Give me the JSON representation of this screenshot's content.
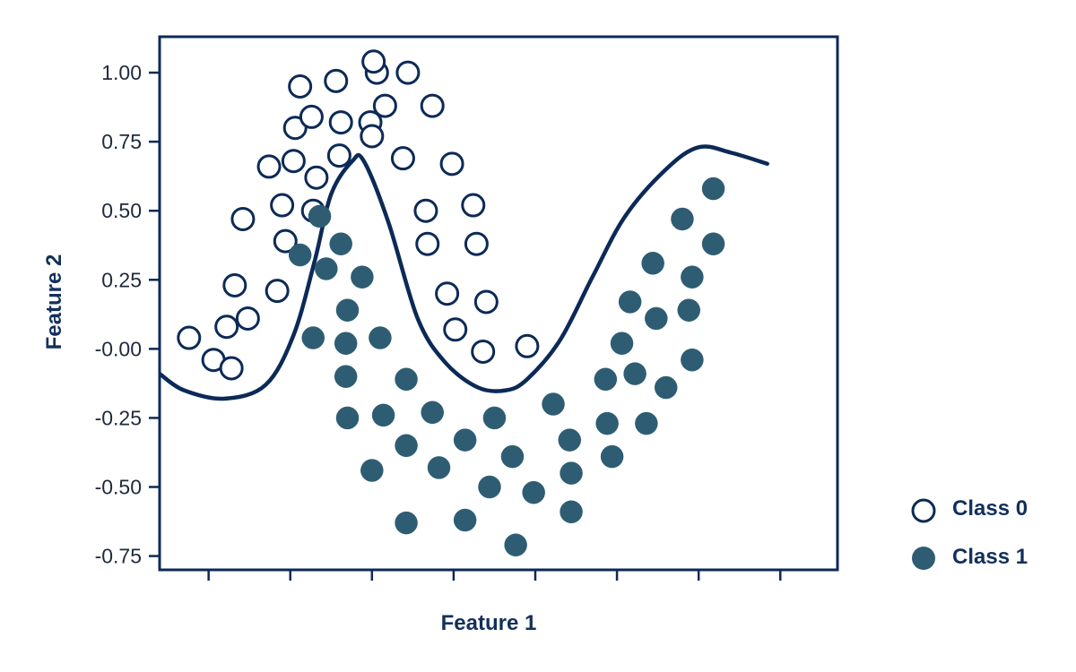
{
  "chart_data": {
    "type": "scatter",
    "title": "",
    "xlabel": "Feature 1",
    "ylabel": "Feature 2",
    "xlim": [
      -1.3,
      2.85
    ],
    "ylim": [
      -0.8,
      1.13
    ],
    "x_ticks": [
      -1,
      -0.5,
      0,
      0.5,
      1,
      1.5,
      2,
      2.5
    ],
    "y_ticks": [
      1.0,
      0.75,
      0.5,
      0.25,
      0.0,
      -0.25,
      -0.5,
      -0.75
    ],
    "y_tick_labels": [
      "1.00",
      "0.75",
      "0.50",
      "0.25",
      "-0.00",
      "-0.25",
      "-0.50",
      "-0.75"
    ],
    "grid": false,
    "legend_position": "right",
    "colors": {
      "axis": "#0c2a57",
      "class0_stroke": "#0c2a57",
      "class0_fill": "#ffffff",
      "class1_fill": "#2e5d73",
      "boundary": "#0c2a57"
    },
    "series": [
      {
        "name": "Class 0",
        "marker": "hollow-circle",
        "points": [
          [
            -1.12,
            0.04
          ],
          [
            -0.97,
            -0.04
          ],
          [
            -0.89,
            0.08
          ],
          [
            -0.86,
            -0.07
          ],
          [
            -0.84,
            0.23
          ],
          [
            -0.79,
            0.47
          ],
          [
            -0.76,
            0.11
          ],
          [
            -0.63,
            0.66
          ],
          [
            -0.58,
            0.21
          ],
          [
            -0.55,
            0.52
          ],
          [
            -0.53,
            0.39
          ],
          [
            -0.48,
            0.68
          ],
          [
            -0.47,
            0.8
          ],
          [
            -0.44,
            0.95
          ],
          [
            -0.37,
            0.84
          ],
          [
            -0.36,
            0.5
          ],
          [
            -0.34,
            0.62
          ],
          [
            -0.22,
            0.97
          ],
          [
            -0.2,
            0.7
          ],
          [
            -0.19,
            0.82
          ],
          [
            -0.01,
            0.82
          ],
          [
            0.03,
            1.0
          ],
          [
            0.0,
            0.77
          ],
          [
            0.01,
            1.04
          ],
          [
            0.08,
            0.88
          ],
          [
            0.19,
            0.69
          ],
          [
            0.22,
            1.0
          ],
          [
            0.33,
            0.5
          ],
          [
            0.34,
            0.38
          ],
          [
            0.37,
            0.88
          ],
          [
            0.46,
            0.2
          ],
          [
            0.49,
            0.67
          ],
          [
            0.51,
            0.07
          ],
          [
            0.62,
            0.52
          ],
          [
            0.64,
            0.38
          ],
          [
            0.7,
            0.17
          ],
          [
            0.68,
            -0.01
          ],
          [
            0.95,
            0.01
          ]
        ]
      },
      {
        "name": "Class 1",
        "marker": "filled-circle",
        "points": [
          [
            -0.44,
            0.34
          ],
          [
            -0.32,
            0.48
          ],
          [
            -0.28,
            0.29
          ],
          [
            -0.19,
            0.38
          ],
          [
            -0.06,
            0.26
          ],
          [
            -0.36,
            0.04
          ],
          [
            -0.15,
            0.14
          ],
          [
            -0.16,
            0.02
          ],
          [
            0.05,
            0.04
          ],
          [
            -0.16,
            -0.1
          ],
          [
            -0.15,
            -0.25
          ],
          [
            0.07,
            -0.24
          ],
          [
            0.21,
            -0.11
          ],
          [
            0.0,
            -0.44
          ],
          [
            0.21,
            -0.35
          ],
          [
            0.37,
            -0.23
          ],
          [
            0.41,
            -0.43
          ],
          [
            0.57,
            -0.33
          ],
          [
            0.75,
            -0.25
          ],
          [
            0.86,
            -0.39
          ],
          [
            0.72,
            -0.5
          ],
          [
            0.21,
            -0.63
          ],
          [
            0.57,
            -0.62
          ],
          [
            0.99,
            -0.52
          ],
          [
            1.11,
            -0.2
          ],
          [
            1.21,
            -0.33
          ],
          [
            1.22,
            -0.45
          ],
          [
            1.22,
            -0.59
          ],
          [
            1.43,
            -0.11
          ],
          [
            1.44,
            -0.27
          ],
          [
            1.47,
            -0.39
          ],
          [
            1.53,
            0.02
          ],
          [
            1.58,
            0.17
          ],
          [
            1.61,
            -0.09
          ],
          [
            1.68,
            -0.27
          ],
          [
            1.72,
            0.31
          ],
          [
            1.74,
            0.11
          ],
          [
            1.8,
            -0.14
          ],
          [
            1.9,
            0.47
          ],
          [
            1.94,
            0.14
          ],
          [
            1.96,
            -0.04
          ],
          [
            1.96,
            0.26
          ],
          [
            2.09,
            0.58
          ],
          [
            2.09,
            0.38
          ],
          [
            0.88,
            -0.71
          ]
        ]
      }
    ],
    "decision_boundary": [
      [
        -1.3,
        -0.09
      ],
      [
        -1.15,
        -0.15
      ],
      [
        -0.9,
        -0.18
      ],
      [
        -0.65,
        -0.13
      ],
      [
        -0.48,
        0.05
      ],
      [
        -0.35,
        0.32
      ],
      [
        -0.25,
        0.56
      ],
      [
        -0.12,
        0.68
      ],
      [
        -0.05,
        0.68
      ],
      [
        0.1,
        0.46
      ],
      [
        0.28,
        0.11
      ],
      [
        0.45,
        -0.05
      ],
      [
        0.65,
        -0.14
      ],
      [
        0.82,
        -0.15
      ],
      [
        0.95,
        -0.11
      ],
      [
        1.15,
        0.03
      ],
      [
        1.35,
        0.26
      ],
      [
        1.55,
        0.48
      ],
      [
        1.8,
        0.65
      ],
      [
        2.0,
        0.73
      ],
      [
        2.2,
        0.71
      ],
      [
        2.42,
        0.67
      ]
    ]
  },
  "legend": {
    "class0_label": "Class 0",
    "class1_label": "Class 1"
  }
}
